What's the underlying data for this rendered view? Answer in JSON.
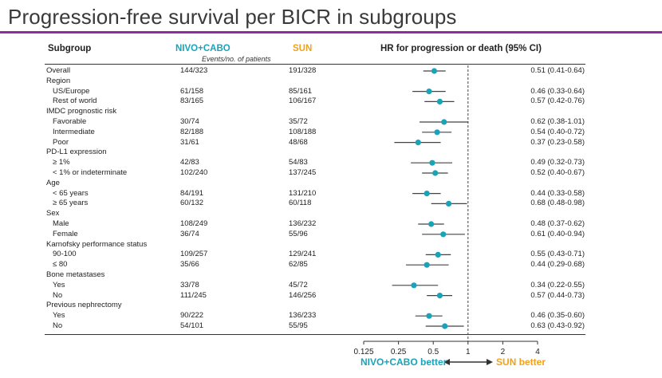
{
  "title": "Progression-free survival per BICR in subgroups",
  "colors": {
    "accent_rule": "#8e2ca0",
    "nivo": "#1aa3b8",
    "sun": "#f0a21a",
    "marker": "#1aa3b8",
    "ci_line": "#444444"
  },
  "header": {
    "subgroup": "Subgroup",
    "nivo": "NIVO+CABO",
    "sun": "SUN",
    "events_note": "Events/no. of patients",
    "hr": "HR for progression or death (95% CI)"
  },
  "legend": {
    "left": "NIVO+CABO better",
    "right": "SUN better"
  },
  "rows": [
    {
      "label": "Overall",
      "indent": false,
      "nivo": "144/323",
      "sun": "191/328",
      "hr_text": "0.51 (0.41-0.64)"
    },
    {
      "label": "Region",
      "indent": false,
      "nivo": "",
      "sun": "",
      "hr_text": ""
    },
    {
      "label": "US/Europe",
      "indent": true,
      "nivo": "61/158",
      "sun": "85/161",
      "hr_text": "0.46 (0.33-0.64)"
    },
    {
      "label": "Rest of world",
      "indent": true,
      "nivo": "83/165",
      "sun": "106/167",
      "hr_text": "0.57 (0.42-0.76)"
    },
    {
      "label": "IMDC prognostic risk",
      "indent": false,
      "nivo": "",
      "sun": "",
      "hr_text": ""
    },
    {
      "label": "Favorable",
      "indent": true,
      "nivo": "30/74",
      "sun": "35/72",
      "hr_text": "0.62 (0.38-1.01)"
    },
    {
      "label": "Intermediate",
      "indent": true,
      "nivo": "82/188",
      "sun": "108/188",
      "hr_text": "0.54 (0.40-0.72)"
    },
    {
      "label": "Poor",
      "indent": true,
      "nivo": "31/61",
      "sun": "48/68",
      "hr_text": "0.37 (0.23-0.58)"
    },
    {
      "label": "PD-L1 expression",
      "indent": false,
      "nivo": "",
      "sun": "",
      "hr_text": ""
    },
    {
      "label": "≥ 1%",
      "indent": true,
      "nivo": "42/83",
      "sun": "54/83",
      "hr_text": "0.49 (0.32-0.73)"
    },
    {
      "label": "< 1% or indeterminate",
      "indent": true,
      "nivo": "102/240",
      "sun": "137/245",
      "hr_text": "0.52 (0.40-0.67)"
    },
    {
      "label": "Age",
      "indent": false,
      "nivo": "",
      "sun": "",
      "hr_text": ""
    },
    {
      "label": "< 65 years",
      "indent": true,
      "nivo": "84/191",
      "sun": "131/210",
      "hr_text": "0.44 (0.33-0.58)"
    },
    {
      "label": "≥ 65 years",
      "indent": true,
      "nivo": "60/132",
      "sun": "60/118",
      "hr_text": "0.68 (0.48-0.98)"
    },
    {
      "label": "Sex",
      "indent": false,
      "nivo": "",
      "sun": "",
      "hr_text": ""
    },
    {
      "label": "Male",
      "indent": true,
      "nivo": "108/249",
      "sun": "136/232",
      "hr_text": "0.48 (0.37-0.62)"
    },
    {
      "label": "Female",
      "indent": true,
      "nivo": "36/74",
      "sun": "55/96",
      "hr_text": "0.61 (0.40-0.94)"
    },
    {
      "label": "Karnofsky performance status",
      "indent": false,
      "nivo": "",
      "sun": "",
      "hr_text": ""
    },
    {
      "label": "90-100",
      "indent": true,
      "nivo": "109/257",
      "sun": "129/241",
      "hr_text": "0.55 (0.43-0.71)"
    },
    {
      "label": "≤ 80",
      "indent": true,
      "nivo": "35/66",
      "sun": "62/85",
      "hr_text": "0.44 (0.29-0.68)"
    },
    {
      "label": "Bone metastases",
      "indent": false,
      "nivo": "",
      "sun": "",
      "hr_text": ""
    },
    {
      "label": "Yes",
      "indent": true,
      "nivo": "33/78",
      "sun": "45/72",
      "hr_text": "0.34 (0.22-0.55)"
    },
    {
      "label": "No",
      "indent": true,
      "nivo": "111/245",
      "sun": "146/256",
      "hr_text": "0.57 (0.44-0.73)"
    },
    {
      "label": "Previous nephrectomy",
      "indent": false,
      "nivo": "",
      "sun": "",
      "hr_text": ""
    },
    {
      "label": "Yes",
      "indent": true,
      "nivo": "90/222",
      "sun": "136/233",
      "hr_text": "0.46 (0.35-0.60)"
    },
    {
      "label": "No",
      "indent": true,
      "nivo": "54/101",
      "sun": "55/95",
      "hr_text": "0.63 (0.43-0.92)"
    }
  ],
  "chart_data": {
    "type": "forest",
    "x_scale": "log2",
    "xlim": [
      0.125,
      4
    ],
    "xticks": [
      0.125,
      0.25,
      0.5,
      1,
      2,
      4
    ],
    "xtick_labels": [
      "0.125",
      "0.25",
      "0.5",
      "1",
      "2",
      "4"
    ],
    "reference_line": 1,
    "series": [
      {
        "subgroup": "Overall",
        "hr": 0.51,
        "lo": 0.41,
        "hi": 0.64
      },
      {
        "subgroup": "US/Europe",
        "hr": 0.46,
        "lo": 0.33,
        "hi": 0.64
      },
      {
        "subgroup": "Rest of world",
        "hr": 0.57,
        "lo": 0.42,
        "hi": 0.76
      },
      {
        "subgroup": "Favorable",
        "hr": 0.62,
        "lo": 0.38,
        "hi": 1.01
      },
      {
        "subgroup": "Intermediate",
        "hr": 0.54,
        "lo": 0.4,
        "hi": 0.72
      },
      {
        "subgroup": "Poor",
        "hr": 0.37,
        "lo": 0.23,
        "hi": 0.58
      },
      {
        "subgroup": "≥ 1%",
        "hr": 0.49,
        "lo": 0.32,
        "hi": 0.73
      },
      {
        "subgroup": "< 1% or indeterminate",
        "hr": 0.52,
        "lo": 0.4,
        "hi": 0.67
      },
      {
        "subgroup": "< 65 years",
        "hr": 0.44,
        "lo": 0.33,
        "hi": 0.58
      },
      {
        "subgroup": "≥ 65 years",
        "hr": 0.68,
        "lo": 0.48,
        "hi": 0.98
      },
      {
        "subgroup": "Male",
        "hr": 0.48,
        "lo": 0.37,
        "hi": 0.62
      },
      {
        "subgroup": "Female",
        "hr": 0.61,
        "lo": 0.4,
        "hi": 0.94
      },
      {
        "subgroup": "90-100",
        "hr": 0.55,
        "lo": 0.43,
        "hi": 0.71
      },
      {
        "subgroup": "≤ 80",
        "hr": 0.44,
        "lo": 0.29,
        "hi": 0.68
      },
      {
        "subgroup": "Bone metastases: Yes",
        "hr": 0.34,
        "lo": 0.22,
        "hi": 0.55
      },
      {
        "subgroup": "Bone metastases: No",
        "hr": 0.57,
        "lo": 0.44,
        "hi": 0.73
      },
      {
        "subgroup": "Previous nephrectomy: Yes",
        "hr": 0.46,
        "lo": 0.35,
        "hi": 0.6
      },
      {
        "subgroup": "Previous nephrectomy: No",
        "hr": 0.63,
        "lo": 0.43,
        "hi": 0.92
      }
    ]
  }
}
